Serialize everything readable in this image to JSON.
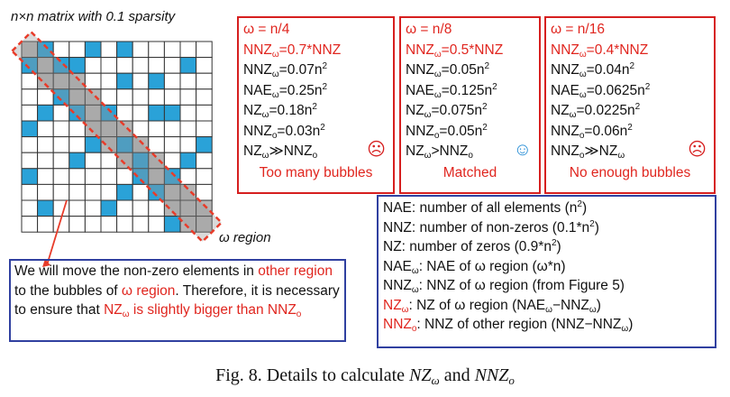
{
  "matrix": {
    "title": "n×n matrix with 0.1 sparsity",
    "region_label": "ω region",
    "colors": {
      "nonzero": "#2aa2d8",
      "band": "#b5b5b5",
      "grid": "#333333",
      "outline": "#e83c2a"
    },
    "n": 12,
    "nonzeros": [
      [
        0,
        1
      ],
      [
        0,
        4
      ],
      [
        0,
        6
      ],
      [
        1,
        0
      ],
      [
        1,
        2
      ],
      [
        1,
        3
      ],
      [
        1,
        10
      ],
      [
        2,
        6
      ],
      [
        2,
        8
      ],
      [
        3,
        2
      ],
      [
        4,
        1
      ],
      [
        4,
        3
      ],
      [
        4,
        5
      ],
      [
        4,
        8
      ],
      [
        4,
        9
      ],
      [
        5,
        0
      ],
      [
        6,
        4
      ],
      [
        6,
        6
      ],
      [
        6,
        11
      ],
      [
        7,
        3
      ],
      [
        7,
        7
      ],
      [
        7,
        10
      ],
      [
        8,
        0
      ],
      [
        8,
        7
      ],
      [
        8,
        9
      ],
      [
        9,
        6
      ],
      [
        9,
        8
      ],
      [
        10,
        1
      ],
      [
        10,
        5
      ],
      [
        11,
        9
      ]
    ],
    "band_width": 3
  },
  "boxes": [
    {
      "header": "ω = n/4",
      "nnz_ratio": "NNZ<sub>ω</sub>=0.7*NNZ",
      "lines": [
        "NNZ<sub>ω</sub>=0.07n<sup>2</sup>",
        "NAE<sub>ω</sub>=0.25n<sup>2</sup>",
        "NZ<sub>ω</sub>=0.18n<sup>2</sup>",
        "NNZ<sub>o</sub>=0.03n<sup>2</sup>",
        "NZ<sub>ω</sub>≫NNZ<sub>o</sub>"
      ],
      "face": "☹",
      "face_icon": "sad-face-icon",
      "verdict": "Too many bubbles"
    },
    {
      "header": "ω = n/8",
      "nnz_ratio": "NNZ<sub>ω</sub>=0.5*NNZ",
      "lines": [
        "NNZ<sub>ω</sub>=0.05n<sup>2</sup>",
        "NAE<sub>ω</sub>=0.125n<sup>2</sup>",
        "NZ<sub>ω</sub>=0.075n<sup>2</sup>",
        "NNZ<sub>o</sub>=0.05n<sup>2</sup>",
        "NZ<sub>ω</sub>>NNZ<sub>o</sub>"
      ],
      "face": "☺",
      "face_icon": "happy-face-icon",
      "verdict": "Matched"
    },
    {
      "header": "ω = n/16",
      "nnz_ratio": "NNZ<sub>ω</sub>=0.4*NNZ",
      "lines": [
        "NNZ<sub>ω</sub>=0.04n<sup>2</sup>",
        "NAE<sub>ω</sub>=0.0625n<sup>2</sup>",
        "NZ<sub>ω</sub>=0.0225n<sup>2</sup>",
        "NNZ<sub>o</sub>=0.06n<sup>2</sup>",
        "NNZ<sub>o</sub>≫NZ<sub>ω</sub>"
      ],
      "face": "☹",
      "face_icon": "sad-face-icon",
      "verdict": "No enough bubbles"
    }
  ],
  "note": {
    "segments": [
      {
        "text": "We will move the non-zero elements in ",
        "red": false
      },
      {
        "text": "other region",
        "red": true
      },
      {
        "text": " to the bubbles of ",
        "red": false
      },
      {
        "text": "ω region",
        "red": true
      },
      {
        "text": ". Therefore, it is necessary to ensure that ",
        "red": false
      },
      {
        "text": "NZ<sub>ω</sub> is slightly bigger than NNZ<sub>o</sub>",
        "red": true
      }
    ]
  },
  "legend": [
    {
      "html": "NAE: number of all elements (n<sup>2</sup>)",
      "red_prefix": ""
    },
    {
      "html": "NNZ: number of non-zeros (0.1*n<sup>2</sup>)",
      "red_prefix": ""
    },
    {
      "html": "NZ: number of zeros (0.9*n<sup>2</sup>)",
      "red_prefix": ""
    },
    {
      "html": "NAE<sub>ω</sub>: NAE of ω region (ω*n)",
      "red_prefix": ""
    },
    {
      "html": "NNZ<sub>ω</sub>: NNZ of ω region (from Figure 5)",
      "red_prefix": ""
    },
    {
      "html": ": NZ of ω region (NAE<sub>ω</sub>−NNZ<sub>ω</sub>)",
      "red_prefix": "NZ<sub>ω</sub>"
    },
    {
      "html": ": NNZ of other region (NNZ−NNZ<sub>ω</sub>)",
      "red_prefix": "NNZ<sub>o</sub>"
    }
  ],
  "caption": "Fig. 8.  Details to calculate <i>NZ</i><sub style=\"font-size:13px;vertical-align:-4px\"><i>ω</i></sub> and <i>NNZ</i><sub style=\"font-size:13px;vertical-align:-4px\"><i>o</i></sub>"
}
